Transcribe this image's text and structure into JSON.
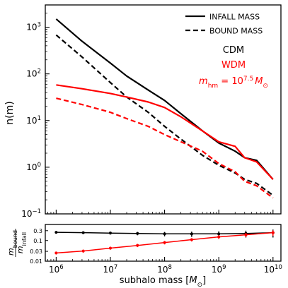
{
  "chart_data": [
    {
      "type": "line",
      "panel": "top",
      "ylabel": "n(m)",
      "yscale": "log",
      "xscale": "log",
      "xlim": [
        630000,
        14000000000
      ],
      "ylim": [
        0.1,
        3000
      ],
      "yticks": [
        {
          "value": 0.1,
          "base": "10",
          "exp": "−1"
        },
        {
          "value": 1,
          "base": "10",
          "exp": "0"
        },
        {
          "value": 10,
          "base": "10",
          "exp": "1"
        },
        {
          "value": 100,
          "base": "10",
          "exp": "2"
        },
        {
          "value": 1000,
          "base": "10",
          "exp": "3"
        }
      ],
      "legend": {
        "placement": "top-right",
        "entries": [
          {
            "label": "INFALL MASS",
            "style": "solid",
            "color": "#000000"
          },
          {
            "label": "BOUND MASS",
            "style": "dashed",
            "color": "#000000"
          }
        ]
      },
      "annotations": [
        {
          "text": "CDM",
          "color": "#000000"
        },
        {
          "text": "WDM",
          "color": "#ff0000"
        },
        {
          "text_base": "m",
          "text_sub": "hm",
          "text_eq": " = 10",
          "text_sup": "7.5",
          "text_unit": "M",
          "text_unit_sub": "⊙",
          "color": "#ff0000"
        }
      ],
      "series": [
        {
          "color": "#000000",
          "style": "solid",
          "x": [
            1000000,
            3000000,
            10000000,
            20000000,
            50000000,
            100000000,
            200000000,
            500000000,
            1000000000,
            2000000000,
            3000000000,
            5000000000,
            10000000000
          ],
          "y": [
            1500,
            500,
            170,
            90,
            45,
            27,
            14,
            6,
            3.3,
            2.2,
            1.6,
            1.4,
            0.55
          ]
        },
        {
          "color": "#000000",
          "style": "dashed",
          "x": [
            1000000,
            3000000,
            10000000,
            20000000,
            50000000,
            100000000,
            200000000,
            500000000,
            1000000000,
            2000000000,
            3000000000,
            5000000000,
            10000000000
          ],
          "y": [
            680,
            230,
            65,
            32,
            15,
            7.5,
            4,
            1.8,
            1.1,
            0.75,
            0.55,
            0.45,
            0.25
          ]
        },
        {
          "color": "#ff0000",
          "style": "solid",
          "x": [
            1000000,
            3000000,
            10000000,
            20000000,
            50000000,
            100000000,
            200000000,
            500000000,
            1000000000,
            2000000000,
            3000000000,
            5000000000,
            10000000000
          ],
          "y": [
            58,
            48,
            38,
            32,
            25,
            19,
            12,
            6,
            3.5,
            2.8,
            1.6,
            1.3,
            0.55
          ]
        },
        {
          "color": "#ff0000",
          "style": "dashed",
          "x": [
            1000000,
            3000000,
            10000000,
            20000000,
            50000000,
            100000000,
            200000000,
            500000000,
            1000000000,
            2000000000,
            3000000000,
            5000000000,
            10000000000
          ],
          "y": [
            30,
            22,
            15,
            11,
            7.5,
            5,
            3.5,
            2.2,
            1.2,
            0.8,
            0.5,
            0.4,
            0.22
          ]
        }
      ]
    },
    {
      "type": "line",
      "panel": "bottom",
      "ylabel": {
        "base": "m",
        "num_sub": "bound",
        "den_sub": "infall"
      },
      "xlabel": {
        "text": "subhalo mass [",
        "unit": "M",
        "unit_sub": "⊙",
        "close": "]"
      },
      "xscale": "log",
      "yscale": "log",
      "xlim": [
        630000,
        14000000000
      ],
      "ylim": [
        0.01,
        0.6
      ],
      "xticks": [
        {
          "value": 1000000,
          "base": "10",
          "exp": "6"
        },
        {
          "value": 10000000,
          "base": "10",
          "exp": "7"
        },
        {
          "value": 100000000,
          "base": "10",
          "exp": "8"
        },
        {
          "value": 1000000000,
          "base": "10",
          "exp": "9"
        },
        {
          "value": 10000000000,
          "base": "10",
          "exp": "10"
        }
      ],
      "yticks": [
        {
          "value": 0.01,
          "label": "0.01"
        },
        {
          "value": 0.03,
          "label": "0.03"
        },
        {
          "value": 0.1,
          "label": "0.1"
        },
        {
          "value": 0.3,
          "label": "0.3"
        }
      ],
      "series": [
        {
          "color": "#000000",
          "x": [
            1000000,
            3160000,
            10000000,
            31600000,
            100000000,
            316000000,
            1000000000,
            3160000000,
            10000000000
          ],
          "y": [
            0.25,
            0.24,
            0.23,
            0.22,
            0.21,
            0.21,
            0.21,
            0.22,
            0.24
          ],
          "err": [
            0.03,
            0.03,
            0.035,
            0.04,
            0.05,
            0.06,
            0.07,
            0.08,
            0.1
          ]
        },
        {
          "color": "#ff0000",
          "x": [
            1000000,
            3160000,
            10000000,
            31600000,
            100000000,
            316000000,
            1000000000,
            3160000000,
            10000000000
          ],
          "y": [
            0.025,
            0.031,
            0.043,
            0.058,
            0.08,
            0.11,
            0.15,
            0.19,
            0.24
          ],
          "err": [
            0.004,
            0.005,
            0.007,
            0.01,
            0.015,
            0.02,
            0.03,
            0.045,
            0.07
          ]
        }
      ]
    }
  ]
}
